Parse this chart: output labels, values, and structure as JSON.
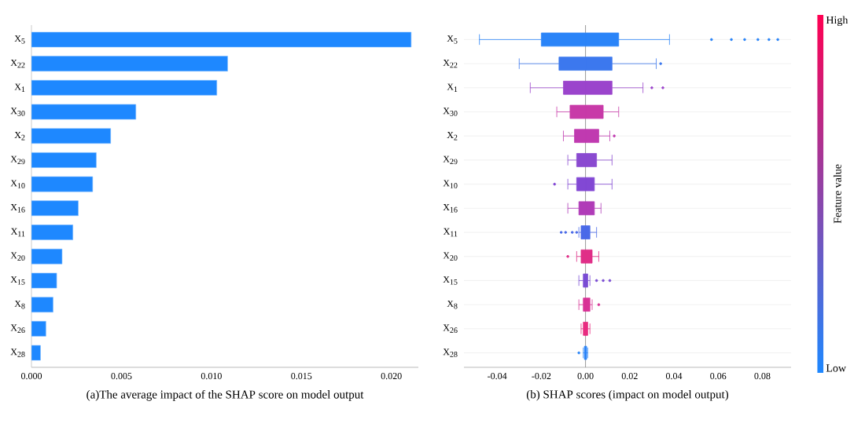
{
  "chart_data": [
    {
      "type": "bar",
      "orientation": "horizontal",
      "xlabel": "(a)The average impact of the SHAP score on model output",
      "categories": [
        "X$_{5}$",
        "X$_{22}$",
        "X$_{1}$",
        "X$_{30}$",
        "X$_{2}$",
        "X$_{29}$",
        "X$_{10}$",
        "X$_{16}$",
        "X$_{11}$",
        "X$_{20}$",
        "X$_{15}$",
        "X$_{8}$",
        "X$_{26}$",
        "X$_{28}$"
      ],
      "values": [
        0.0211,
        0.0109,
        0.0103,
        0.0058,
        0.0044,
        0.0036,
        0.0034,
        0.0026,
        0.0023,
        0.0017,
        0.0014,
        0.0012,
        0.0008,
        0.0005
      ],
      "color": "#1e88ff",
      "xlim": [
        0,
        0.0215
      ],
      "xticks": [
        {
          "value": 0,
          "label": "0.000"
        },
        {
          "value": 0.005,
          "label": "0.005"
        },
        {
          "value": 0.01,
          "label": "0.010"
        },
        {
          "value": 0.015,
          "label": "0.015"
        },
        {
          "value": 0.02,
          "label": "0.020"
        }
      ]
    },
    {
      "type": "box",
      "orientation": "horizontal",
      "xlabel": "(b) SHAP scores (impact on model output)",
      "clabel": "Feature value",
      "categories": [
        "X$_{5}$",
        "X$_{22}$",
        "X$_{1}$",
        "X$_{30}$",
        "X$_{2}$",
        "X$_{29}$",
        "X$_{10}$",
        "X$_{16}$",
        "X$_{11}$",
        "X$_{20}$",
        "X$_{15}$",
        "X$_{8}$",
        "X$_{26}$",
        "X$_{28}$"
      ],
      "boxes": [
        {
          "low": -0.048,
          "q1": -0.02,
          "median": 0,
          "q3": 0.015,
          "high": 0.038,
          "outliers": [
            0.057,
            0.066,
            0.072,
            0.078,
            0.083,
            0.087
          ]
        },
        {
          "low": -0.03,
          "q1": -0.012,
          "median": 0,
          "q3": 0.012,
          "high": 0.032,
          "outliers": [
            0.034
          ]
        },
        {
          "low": -0.025,
          "q1": -0.01,
          "median": 0,
          "q3": 0.012,
          "high": 0.026,
          "outliers": [
            0.03,
            0.035
          ]
        },
        {
          "low": -0.013,
          "q1": -0.007,
          "median": 0,
          "q3": 0.008,
          "high": 0.015
        },
        {
          "low": -0.01,
          "q1": -0.005,
          "median": 0,
          "q3": 0.006,
          "high": 0.011,
          "outliers": [
            0.013
          ]
        },
        {
          "low": -0.008,
          "q1": -0.004,
          "median": 0,
          "q3": 0.005,
          "high": 0.012
        },
        {
          "low": -0.008,
          "q1": -0.004,
          "median": 0,
          "q3": 0.004,
          "high": 0.012,
          "outliers": [
            -0.014
          ]
        },
        {
          "low": -0.008,
          "q1": -0.003,
          "median": 0,
          "q3": 0.004,
          "high": 0.007
        },
        {
          "low": -0.003,
          "q1": -0.002,
          "median": 0,
          "q3": 0.002,
          "high": 0.005,
          "outliers": [
            -0.011,
            -0.009,
            -0.006,
            -0.004
          ]
        },
        {
          "low": -0.004,
          "q1": -0.002,
          "median": 0,
          "q3": 0.003,
          "high": 0.006,
          "outliers": [
            -0.008
          ]
        },
        {
          "low": -0.003,
          "q1": -0.001,
          "median": 0,
          "q3": 0.001,
          "high": 0.002,
          "outliers": [
            0.005,
            0.008,
            0.011
          ]
        },
        {
          "low": -0.003,
          "q1": -0.001,
          "median": 0,
          "q3": 0.002,
          "high": 0.003,
          "outliers": [
            0.006
          ]
        },
        {
          "low": -0.002,
          "q1": -0.001,
          "median": 0,
          "q3": 0.001,
          "high": 0.002
        },
        {
          "low": -0.001,
          "q1": -0.0005,
          "median": 0,
          "q3": 0.0005,
          "high": 0.001,
          "outliers": [
            -0.003
          ]
        }
      ],
      "colors": [
        "#2a84f8",
        "#3c78ee",
        "#9b44cc",
        "#c83aa8",
        "#c03ab0",
        "#8a4ad0",
        "#8248d4",
        "#b03cb8",
        "#4a6ae8",
        "#e02e88",
        "#7a4cd4",
        "#d83296",
        "#e82c80",
        "#2a84f8"
      ],
      "xlim": [
        -0.055,
        0.093
      ],
      "xticks": [
        -0.04,
        -0.02,
        {
          "value": 0,
          "label": "0.00"
        },
        0.02,
        0.04,
        0.06,
        0.08
      ],
      "ref_lines": [
        {
          "axis": "x",
          "value": 0,
          "color": "#808080"
        }
      ],
      "grid": "y",
      "annotations": [
        "Low",
        "High"
      ]
    }
  ]
}
